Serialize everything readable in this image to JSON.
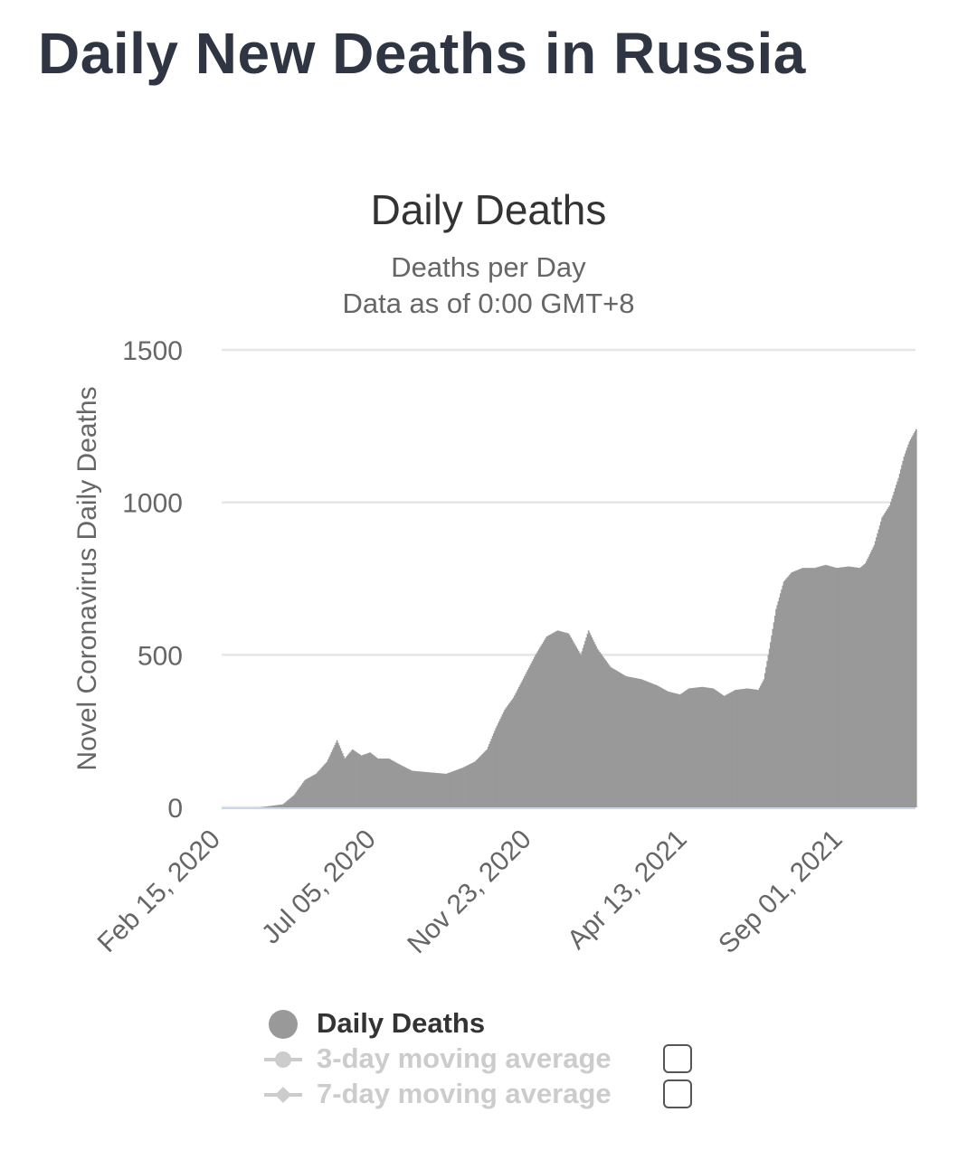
{
  "page": {
    "title": "Daily New Deaths in Russia"
  },
  "chart_data": {
    "type": "bar",
    "title": "Daily Deaths",
    "subtitle_lines": [
      "Deaths per Day",
      "Data as of 0:00 GMT+8"
    ],
    "ylabel": "Novel Coronavirus Daily Deaths",
    "xlabel": "",
    "ylim": [
      0,
      1500
    ],
    "yticks": [
      "0",
      "500",
      "1000",
      "1500"
    ],
    "xlim": [
      "2020-02-15",
      "2021-11-05"
    ],
    "xticks": [
      {
        "date": "2020-02-15",
        "label": "Feb 15, 2020"
      },
      {
        "date": "2020-07-05",
        "label": "Jul 05, 2020"
      },
      {
        "date": "2020-11-23",
        "label": "Nov 23, 2020"
      },
      {
        "date": "2021-04-13",
        "label": "Apr 13, 2021"
      },
      {
        "date": "2021-09-01",
        "label": "Sep 01, 2021"
      }
    ],
    "grid": true,
    "bar_color": "#999999",
    "series": [
      {
        "name": "Daily Deaths",
        "points": [
          [
            "2020-02-15",
            0
          ],
          [
            "2020-03-20",
            0
          ],
          [
            "2020-04-10",
            10
          ],
          [
            "2020-04-20",
            40
          ],
          [
            "2020-04-30",
            90
          ],
          [
            "2020-05-10",
            110
          ],
          [
            "2020-05-20",
            150
          ],
          [
            "2020-05-29",
            220
          ],
          [
            "2020-06-05",
            160
          ],
          [
            "2020-06-12",
            190
          ],
          [
            "2020-06-20",
            170
          ],
          [
            "2020-06-28",
            180
          ],
          [
            "2020-07-05",
            160
          ],
          [
            "2020-07-15",
            160
          ],
          [
            "2020-07-25",
            140
          ],
          [
            "2020-08-05",
            120
          ],
          [
            "2020-08-20",
            115
          ],
          [
            "2020-09-05",
            110
          ],
          [
            "2020-09-20",
            130
          ],
          [
            "2020-10-01",
            150
          ],
          [
            "2020-10-12",
            190
          ],
          [
            "2020-10-20",
            260
          ],
          [
            "2020-10-28",
            320
          ],
          [
            "2020-11-05",
            360
          ],
          [
            "2020-11-15",
            430
          ],
          [
            "2020-11-25",
            500
          ],
          [
            "2020-12-05",
            560
          ],
          [
            "2020-12-15",
            580
          ],
          [
            "2020-12-25",
            570
          ],
          [
            "2021-01-05",
            500
          ],
          [
            "2021-01-12",
            580
          ],
          [
            "2021-01-20",
            520
          ],
          [
            "2021-02-01",
            460
          ],
          [
            "2021-02-15",
            430
          ],
          [
            "2021-03-01",
            420
          ],
          [
            "2021-03-15",
            400
          ],
          [
            "2021-03-25",
            380
          ],
          [
            "2021-04-05",
            370
          ],
          [
            "2021-04-13",
            390
          ],
          [
            "2021-04-25",
            395
          ],
          [
            "2021-05-05",
            390
          ],
          [
            "2021-05-15",
            365
          ],
          [
            "2021-05-25",
            385
          ],
          [
            "2021-06-05",
            390
          ],
          [
            "2021-06-15",
            385
          ],
          [
            "2021-06-20",
            420
          ],
          [
            "2021-06-25",
            520
          ],
          [
            "2021-07-01",
            650
          ],
          [
            "2021-07-08",
            740
          ],
          [
            "2021-07-15",
            770
          ],
          [
            "2021-07-25",
            785
          ],
          [
            "2021-08-05",
            785
          ],
          [
            "2021-08-15",
            795
          ],
          [
            "2021-08-25",
            785
          ],
          [
            "2021-09-05",
            790
          ],
          [
            "2021-09-15",
            785
          ],
          [
            "2021-09-20",
            800
          ],
          [
            "2021-09-28",
            860
          ],
          [
            "2021-10-05",
            950
          ],
          [
            "2021-10-12",
            990
          ],
          [
            "2021-10-20",
            1080
          ],
          [
            "2021-10-25",
            1150
          ],
          [
            "2021-10-30",
            1200
          ],
          [
            "2021-11-05",
            1240
          ]
        ]
      }
    ],
    "legend": {
      "placement": "bottom",
      "items": [
        {
          "label": "Daily Deaths",
          "active": true,
          "color": "#999999",
          "symbol": "circle"
        },
        {
          "label": "3-day moving average",
          "active": false,
          "color": "#cccccc",
          "symbol": "circle-line"
        },
        {
          "label": "7-day moving average",
          "active": false,
          "color": "#cccccc",
          "symbol": "diamond-line"
        }
      ]
    }
  }
}
